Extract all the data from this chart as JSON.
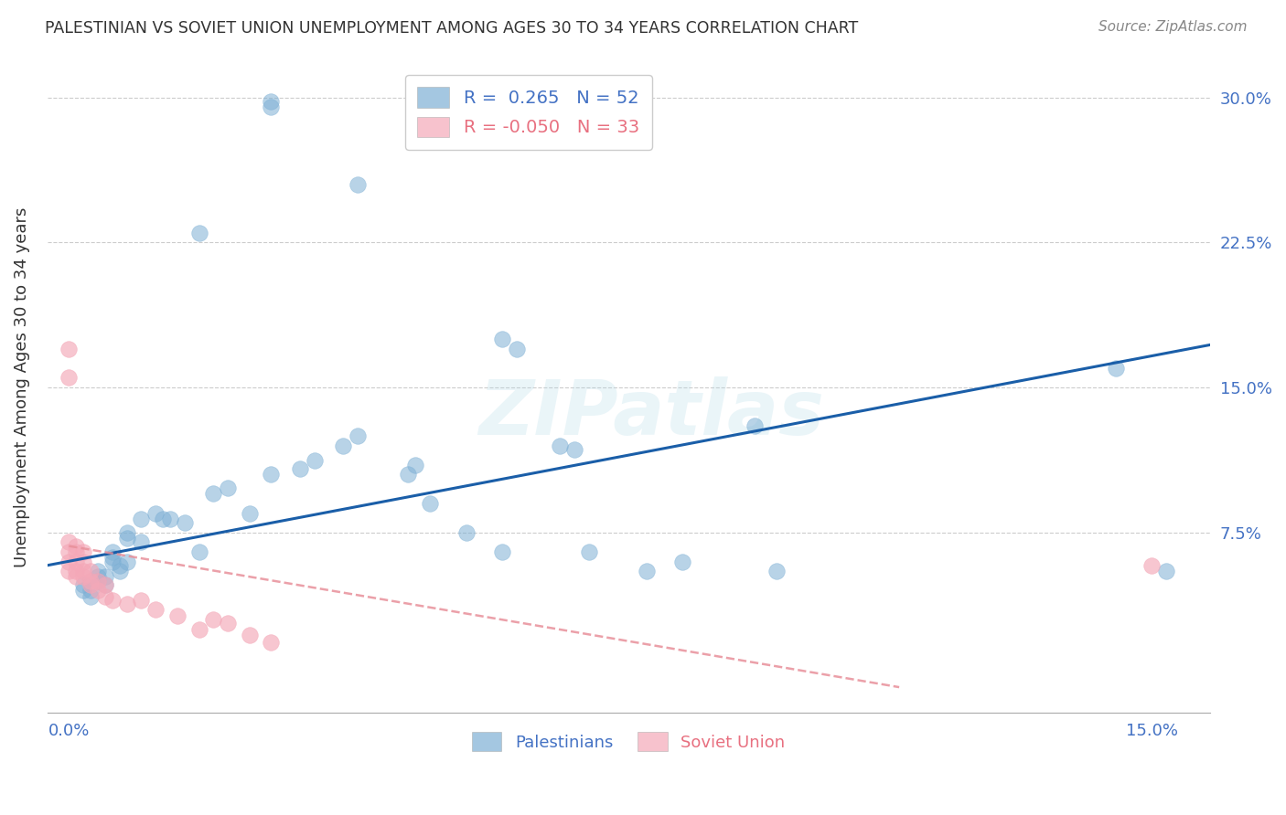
{
  "title": "PALESTINIAN VS SOVIET UNION UNEMPLOYMENT AMONG AGES 30 TO 34 YEARS CORRELATION CHART",
  "source": "Source: ZipAtlas.com",
  "ylabel": "Unemployment Among Ages 30 to 34 years",
  "xlim": [
    -0.003,
    0.158
  ],
  "ylim": [
    -0.018,
    0.318
  ],
  "xticks": [
    0.0,
    0.025,
    0.05,
    0.075,
    0.1,
    0.125,
    0.15
  ],
  "yticks": [
    0.0,
    0.075,
    0.15,
    0.225,
    0.3
  ],
  "blue_color": "#7EB0D5",
  "pink_color": "#F4A8B8",
  "line_blue": "#1A5EA8",
  "line_pink": "#E8909A",
  "legend_R_blue": "0.265",
  "legend_N_blue": "52",
  "legend_R_pink": "-0.050",
  "legend_N_pink": "33",
  "watermark_text": "ZIPatlas",
  "blue_x": [
    0.028,
    0.028,
    0.04,
    0.018,
    0.06,
    0.062,
    0.038,
    0.04,
    0.028,
    0.032,
    0.034,
    0.02,
    0.022,
    0.01,
    0.012,
    0.014,
    0.016,
    0.008,
    0.008,
    0.01,
    0.006,
    0.006,
    0.006,
    0.007,
    0.007,
    0.008,
    0.004,
    0.004,
    0.004,
    0.005,
    0.005,
    0.002,
    0.002,
    0.003,
    0.003,
    0.047,
    0.048,
    0.068,
    0.07,
    0.05,
    0.055,
    0.095,
    0.098,
    0.072,
    0.085,
    0.06,
    0.08,
    0.025,
    0.013,
    0.018,
    0.145,
    0.152
  ],
  "blue_y": [
    0.295,
    0.298,
    0.255,
    0.23,
    0.175,
    0.17,
    0.12,
    0.125,
    0.105,
    0.108,
    0.112,
    0.095,
    0.098,
    0.082,
    0.085,
    0.082,
    0.08,
    0.075,
    0.072,
    0.07,
    0.065,
    0.062,
    0.06,
    0.058,
    0.055,
    0.06,
    0.055,
    0.052,
    0.05,
    0.048,
    0.052,
    0.048,
    0.045,
    0.042,
    0.045,
    0.105,
    0.11,
    0.12,
    0.118,
    0.09,
    0.075,
    0.13,
    0.055,
    0.065,
    0.06,
    0.065,
    0.055,
    0.085,
    0.082,
    0.065,
    0.16,
    0.055
  ],
  "pink_x": [
    0.0,
    0.0,
    0.0,
    0.0,
    0.0,
    0.0,
    0.001,
    0.001,
    0.001,
    0.001,
    0.001,
    0.002,
    0.002,
    0.002,
    0.002,
    0.003,
    0.003,
    0.003,
    0.004,
    0.004,
    0.005,
    0.005,
    0.006,
    0.008,
    0.01,
    0.012,
    0.015,
    0.018,
    0.02,
    0.022,
    0.025,
    0.028,
    0.15
  ],
  "pink_y": [
    0.17,
    0.155,
    0.07,
    0.065,
    0.06,
    0.055,
    0.068,
    0.065,
    0.06,
    0.055,
    0.052,
    0.065,
    0.06,
    0.055,
    0.052,
    0.055,
    0.05,
    0.048,
    0.05,
    0.045,
    0.048,
    0.042,
    0.04,
    0.038,
    0.04,
    0.035,
    0.032,
    0.025,
    0.03,
    0.028,
    0.022,
    0.018,
    0.058
  ],
  "blue_line_x0": -0.003,
  "blue_line_x1": 0.158,
  "blue_line_y0": 0.058,
  "blue_line_y1": 0.172,
  "pink_line_x0": 0.0,
  "pink_line_x1": 0.115,
  "pink_line_y0": 0.068,
  "pink_line_y1": -0.005
}
